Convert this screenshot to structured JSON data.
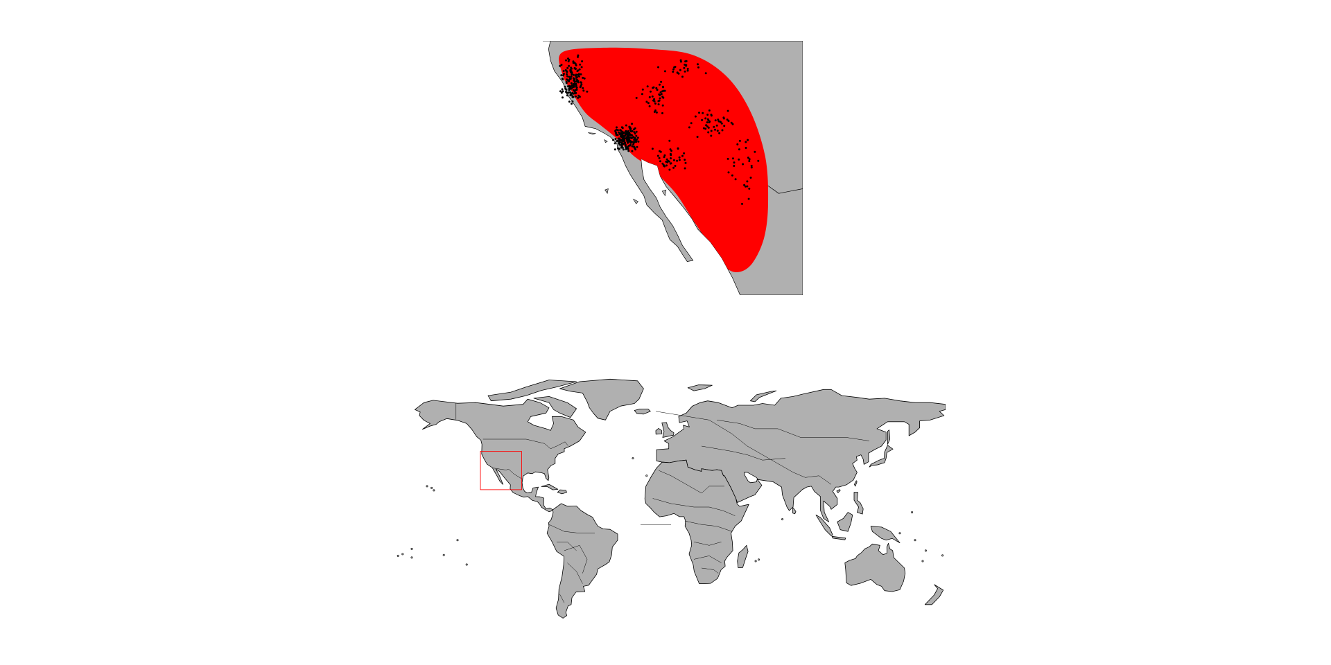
{
  "figure": {
    "panels": [
      "inset-map",
      "world-map"
    ]
  },
  "colors": {
    "background": "#ffffff",
    "land": "#b0b0b0",
    "border": "#000000",
    "range_fill": "#ff0000",
    "extent_box": "#ff0000",
    "points": "#000000"
  },
  "inset_map": {
    "lon_range": [
      -125,
      -98
    ],
    "lat_range": [
      20,
      42
    ],
    "range_polygon": [
      [
        -123.0,
        41.0
      ],
      [
        -119.0,
        41.4
      ],
      [
        -114.0,
        41.3
      ],
      [
        -109.5,
        40.8
      ],
      [
        -106.0,
        39.0
      ],
      [
        -103.5,
        36.0
      ],
      [
        -101.9,
        32.0
      ],
      [
        -101.6,
        28.0
      ],
      [
        -102.0,
        25.0
      ],
      [
        -103.2,
        22.8
      ],
      [
        -104.6,
        22.0
      ],
      [
        -106.0,
        22.4
      ],
      [
        -107.6,
        24.3
      ],
      [
        -109.4,
        26.5
      ],
      [
        -111.0,
        28.6
      ],
      [
        -112.5,
        30.0
      ],
      [
        -113.7,
        31.0
      ],
      [
        -115.5,
        32.0
      ],
      [
        -117.4,
        33.6
      ],
      [
        -119.0,
        34.7
      ],
      [
        -120.6,
        35.8
      ],
      [
        -122.0,
        37.6
      ],
      [
        -123.0,
        39.2
      ]
    ],
    "occurrence_count": 520
  },
  "world_map": {
    "lon_range": [
      -180,
      180
    ],
    "lat_range": [
      -60,
      84
    ],
    "highlight_extent": {
      "lon": [
        -125,
        -98
      ],
      "lat": [
        20,
        42
      ]
    }
  }
}
